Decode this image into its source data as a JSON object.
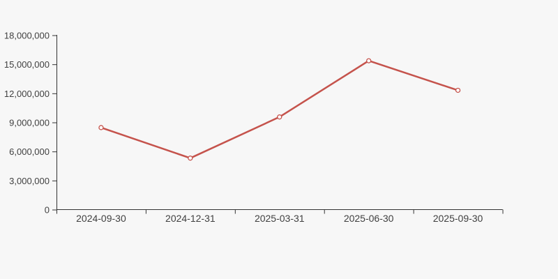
{
  "chart_data": {
    "type": "line",
    "categories": [
      "2024-09-30",
      "2024-12-31",
      "2025-03-31",
      "2025-06-30",
      "2025-09-30"
    ],
    "values": [
      8500000,
      5350000,
      9600000,
      15400000,
      12350000
    ],
    "series_name": "",
    "title": "",
    "xlabel": "",
    "ylabel": "",
    "ylim": [
      0,
      18000000
    ],
    "y_tick_step": 3000000,
    "y_tick_labels": [
      "0",
      "3,000,000",
      "6,000,000",
      "9,000,000",
      "12,000,000",
      "15,000,000",
      "18,000,000"
    ],
    "grid": false,
    "legend_position": "none",
    "marker": "open-circle",
    "colors": {
      "line": "#c5534c",
      "marker_fill": "#ffffff",
      "axis": "#333333",
      "label": "#404040",
      "background": "#f7f7f7"
    }
  }
}
